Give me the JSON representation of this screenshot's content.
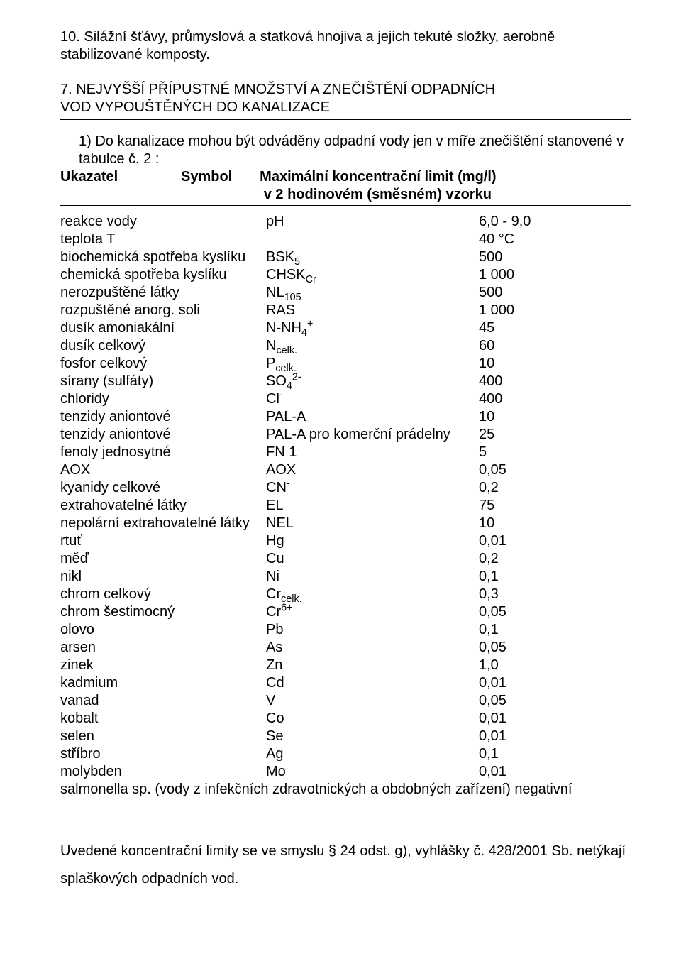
{
  "intro_para": "10. Silážní šťávy, průmyslová a statková hnojiva a jejich tekuté složky, aerobně stabilizované komposty.",
  "heading_line1": "7. NEJVYŠŠÍ PŘÍPUSTNÉ  MNOŽSTVÍ A ZNEČIŠTĚNÍ ODPADNÍCH",
  "heading_line2": "VOD VYPOUŠTĚNÝCH DO KANALIZACE",
  "lead_in": "1) Do kanalizace mohou být odváděny odpadní vody jen v míře znečištění stanovené v tabulce  č. 2 :",
  "header": {
    "c1": "Ukazatel",
    "c2": "Symbol",
    "c3a": "Maximální koncentrační limit (mg/l)",
    "c3b": "v 2 hodinovém (směsném) vzorku"
  },
  "rows": [
    {
      "c1": "reakce vody",
      "c2_pre": "pH",
      "c3": "6,0 - 9,0"
    },
    {
      "c1": "teplota                              T",
      "c2_pre": "",
      "c3": "40 °C"
    },
    {
      "c1": "biochemická  spotřeba kyslíku",
      "c2_pre": "BSK",
      "c2_sub": "5",
      "c3": "500"
    },
    {
      "c1": "chemická spotřeba kyslíku",
      "c2_pre": "CHSK",
      "c2_sub": "Cr",
      "c3": "1 000"
    },
    {
      "c1": "nerozpuštěné  látky",
      "c2_pre": "NL",
      "c2_sub": "105",
      "c3": "500"
    },
    {
      "c1": "rozpuštěné anorg. soli",
      "c2_pre": "RAS",
      "c3": "1 000"
    },
    {
      "c1": "dusík amoniakální",
      "c2_pre": "N-NH",
      "c2_sub": "4",
      "c2_sup": "+",
      "c3": "45"
    },
    {
      "c1": "dusík celkový",
      "c2_pre": "N",
      "c2_sub": "celk.",
      "c3": "60"
    },
    {
      "c1": "fosfor celkový",
      "c2_pre": "P",
      "c2_sub": "celk.",
      "c3": "10"
    },
    {
      "c1": "sírany (sulfáty)",
      "c2_pre": "SO",
      "c2_sub": "4",
      "c2_sup": "2-",
      "c3": "400"
    },
    {
      "c1": "chloridy",
      "c2_pre": "Cl",
      "c2_sup": "-",
      "c3": "400"
    },
    {
      "c1": "tenzidy aniontové",
      "c2_pre": "PAL-A",
      "c3": "10"
    },
    {
      "c1": "tenzidy aniontové",
      "c2_pre": "PAL-A pro komerční prádelny",
      "c3": "25"
    },
    {
      "c1": "fenoly  jednosytné",
      "c2_pre": "FN 1",
      "c3": "5"
    },
    {
      "c1": "AOX",
      "c2_pre": "AOX",
      "c3": "0,05"
    },
    {
      "c1": "kyanidy celkové",
      "c2_pre": "CN",
      "c2_sup": "-",
      "c3": "0,2"
    },
    {
      "c1": "extrahovatelné látky",
      "c2_pre": "EL",
      "c3": "75"
    },
    {
      "c1": "nepolární extrahovatelné látky",
      "c2_pre": "NEL",
      "c3": "10"
    },
    {
      "c1": "rtuť",
      "c2_pre": "Hg",
      "c3": "0,01"
    },
    {
      "c1": "měď",
      "c2_pre": "Cu",
      "c3": "0,2"
    },
    {
      "c1": "nikl",
      "c2_pre": "Ni",
      "c3": "0,1"
    },
    {
      "c1": "chrom  celkový",
      "c2_pre": "Cr",
      "c2_sub": "celk.",
      "c3": "0,3"
    },
    {
      "c1": "chrom šestimocný",
      "c2_pre": "Cr",
      "c2_sup": "6+",
      "c3": "0,05"
    },
    {
      "c1": "olovo",
      "c2_pre": "Pb",
      "c3": "0,1"
    },
    {
      "c1": "arsen",
      "c2_pre": "As",
      "c3": "0,05"
    },
    {
      "c1": "zinek",
      "c2_pre": "Zn",
      "c3": "1,0"
    },
    {
      "c1": "kadmium",
      "c2_pre": "Cd",
      "c3": "0,01"
    },
    {
      "c1": "vanad",
      "c2_pre": "V",
      "c3": "0,05"
    },
    {
      "c1": "kobalt",
      "c2_pre": "Co",
      "c3": "0,01"
    },
    {
      "c1": "selen",
      "c2_pre": "Se",
      "c3": "0,01"
    },
    {
      "c1": "stříbro",
      "c2_pre": "Ag",
      "c3": "0,1"
    },
    {
      "c1": "molybden",
      "c2_pre": "Mo",
      "c3": "0,01"
    }
  ],
  "last_row_full": "salmonella sp. (vody z infekčních zdravotnických a obdobných zařízení)  negativní",
  "footer": "Uvedené koncentrační limity se ve smyslu § 24 odst. g), vyhlášky  č. 428/2001 Sb. netýkají splaškových odpadních vod."
}
